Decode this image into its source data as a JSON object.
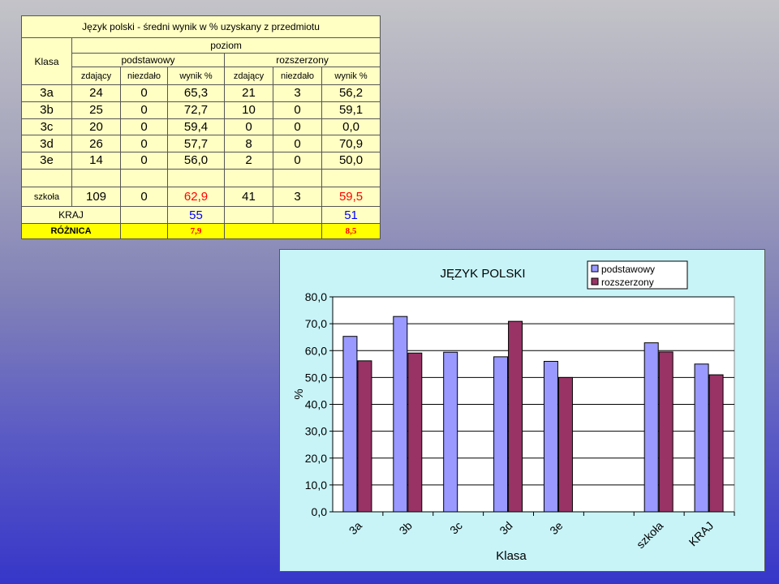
{
  "table": {
    "title": "Język polski - średni wynik w % uzyskany  z przedmiotu",
    "klasa_label": "Klasa",
    "poziom_label": "poziom",
    "level_labels": [
      "podstawowy",
      "rozszerzony"
    ],
    "col_labels": [
      "zdający",
      "niezdało",
      "wynik %",
      "zdający",
      "niezdało",
      "wynik %"
    ],
    "rows": [
      {
        "name": "3a",
        "cells": [
          "24",
          "0",
          "65,3",
          "21",
          "3",
          "56,2"
        ]
      },
      {
        "name": "3b",
        "cells": [
          "25",
          "0",
          "72,7",
          "10",
          "0",
          "59,1"
        ]
      },
      {
        "name": "3c",
        "cells": [
          "20",
          "0",
          "59,4",
          "0",
          "0",
          "0,0"
        ]
      },
      {
        "name": "3d",
        "cells": [
          "26",
          "0",
          "57,7",
          "8",
          "0",
          "70,9"
        ]
      },
      {
        "name": "3e",
        "cells": [
          "14",
          "0",
          "56,0",
          "2",
          "0",
          "50,0"
        ]
      }
    ],
    "szkola": {
      "name": "szkoła",
      "cells": [
        "109",
        "0",
        "62,9",
        "41",
        "3",
        "59,5"
      ]
    },
    "kraj": {
      "name": "KRAJ",
      "podst": "55",
      "rozsz": "51"
    },
    "roznica": {
      "name": "RÓŻNICA",
      "podst": "7,9",
      "rozsz": "8,5"
    },
    "colors": {
      "background": "#ffffc4",
      "highlight": "#ffff00",
      "red": "#ff0000",
      "blue": "#0000ff"
    }
  },
  "chart_data": {
    "type": "bar",
    "title": "JĘZYK POLSKI",
    "xlabel": "Klasa",
    "ylabel": "%",
    "categories": [
      "3a",
      "3b",
      "3c",
      "3d",
      "3e",
      "",
      "szkoła",
      "KRAJ"
    ],
    "series": [
      {
        "name": "podstawowy",
        "color": "#9999ff",
        "values": [
          65.3,
          72.7,
          59.4,
          57.7,
          56.0,
          null,
          62.9,
          55
        ]
      },
      {
        "name": "rozszerzony",
        "color": "#993366",
        "values": [
          56.2,
          59.1,
          0.0,
          70.9,
          50.0,
          null,
          59.5,
          51
        ]
      }
    ],
    "ylim": [
      0,
      80
    ],
    "yticks": [
      "0,0",
      "10,0",
      "20,0",
      "30,0",
      "40,0",
      "50,0",
      "60,0",
      "70,0",
      "80,0"
    ],
    "grid": true,
    "legend": "top-right",
    "plot_background": "#ffffff",
    "chart_background": "#c8f4f8"
  }
}
